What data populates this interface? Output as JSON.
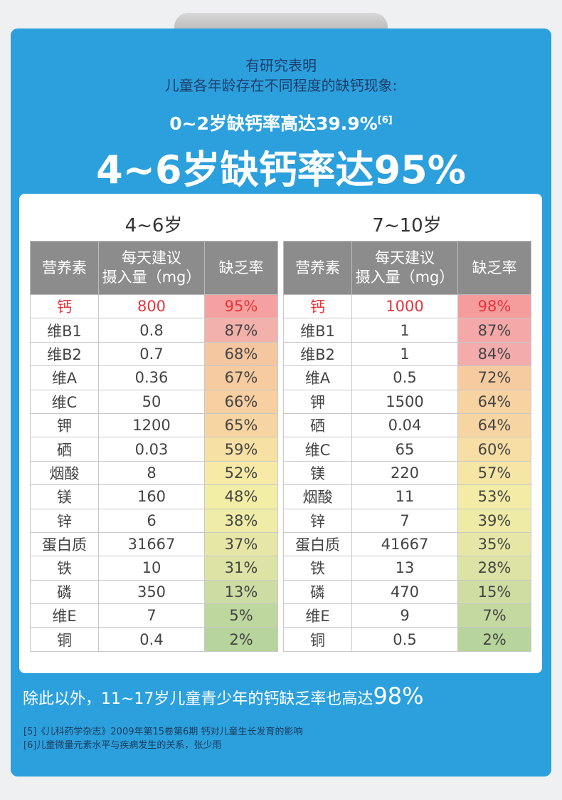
{
  "header": {
    "intro_line1": "有研究表明",
    "intro_line2": "儿童各年龄存在不同程度的缺钙现象:",
    "subhead": "0~2岁缺钙率高达39.9%",
    "subhead_ref": "[6]",
    "headline": "4~6岁缺钙率达95%"
  },
  "tables": [
    {
      "title": "4~6岁",
      "headers": [
        "营养素",
        [
          "每天建议",
          "摄入量（mg）"
        ],
        "缺乏率"
      ],
      "rows": [
        [
          "钙",
          "800",
          "95%"
        ],
        [
          "维B1",
          "0.8",
          "87%"
        ],
        [
          "维B2",
          "0.7",
          "68%"
        ],
        [
          "维A",
          "0.36",
          "67%"
        ],
        [
          "维C",
          "50",
          "66%"
        ],
        [
          "钾",
          "1200",
          "65%"
        ],
        [
          "硒",
          "0.03",
          "59%"
        ],
        [
          "烟酸",
          "8",
          "52%"
        ],
        [
          "镁",
          "160",
          "48%"
        ],
        [
          "锌",
          "6",
          "38%"
        ],
        [
          "蛋白质",
          "31667",
          "37%"
        ],
        [
          "铁",
          "10",
          "31%"
        ],
        [
          "磷",
          "350",
          "13%"
        ],
        [
          "维E",
          "7",
          "5%"
        ],
        [
          "铜",
          "0.4",
          "2%"
        ]
      ]
    },
    {
      "title": "7~10岁",
      "headers": [
        "营养素",
        [
          "每天建议",
          "摄入量（mg）"
        ],
        "缺乏率"
      ],
      "rows": [
        [
          "钙",
          "1000",
          "98%"
        ],
        [
          "维B1",
          "1",
          "87%"
        ],
        [
          "维B2",
          "1",
          "84%"
        ],
        [
          "维A",
          "0.5",
          "72%"
        ],
        [
          "钾",
          "1500",
          "64%"
        ],
        [
          "硒",
          "0.04",
          "64%"
        ],
        [
          "维C",
          "65",
          "60%"
        ],
        [
          "镁",
          "220",
          "57%"
        ],
        [
          "烟酸",
          "11",
          "53%"
        ],
        [
          "锌",
          "7",
          "39%"
        ],
        [
          "蛋白质",
          "41667",
          "35%"
        ],
        [
          "铁",
          "13",
          "28%"
        ],
        [
          "磷",
          "470",
          "15%"
        ],
        [
          "维E",
          "9",
          "7%"
        ],
        [
          "铜",
          "0.5",
          "2%"
        ]
      ]
    }
  ],
  "footer": {
    "text": "除此以外，11~17岁儿童青少年的钙缺乏率也高达",
    "highlight": "98%"
  },
  "references": [
    "[5]《儿科药学杂志》2009年第15卷第6期 钙对儿童生长发育的影响",
    "[6]儿童微量元素水平与疾病发生的关系，张少雨"
  ]
}
